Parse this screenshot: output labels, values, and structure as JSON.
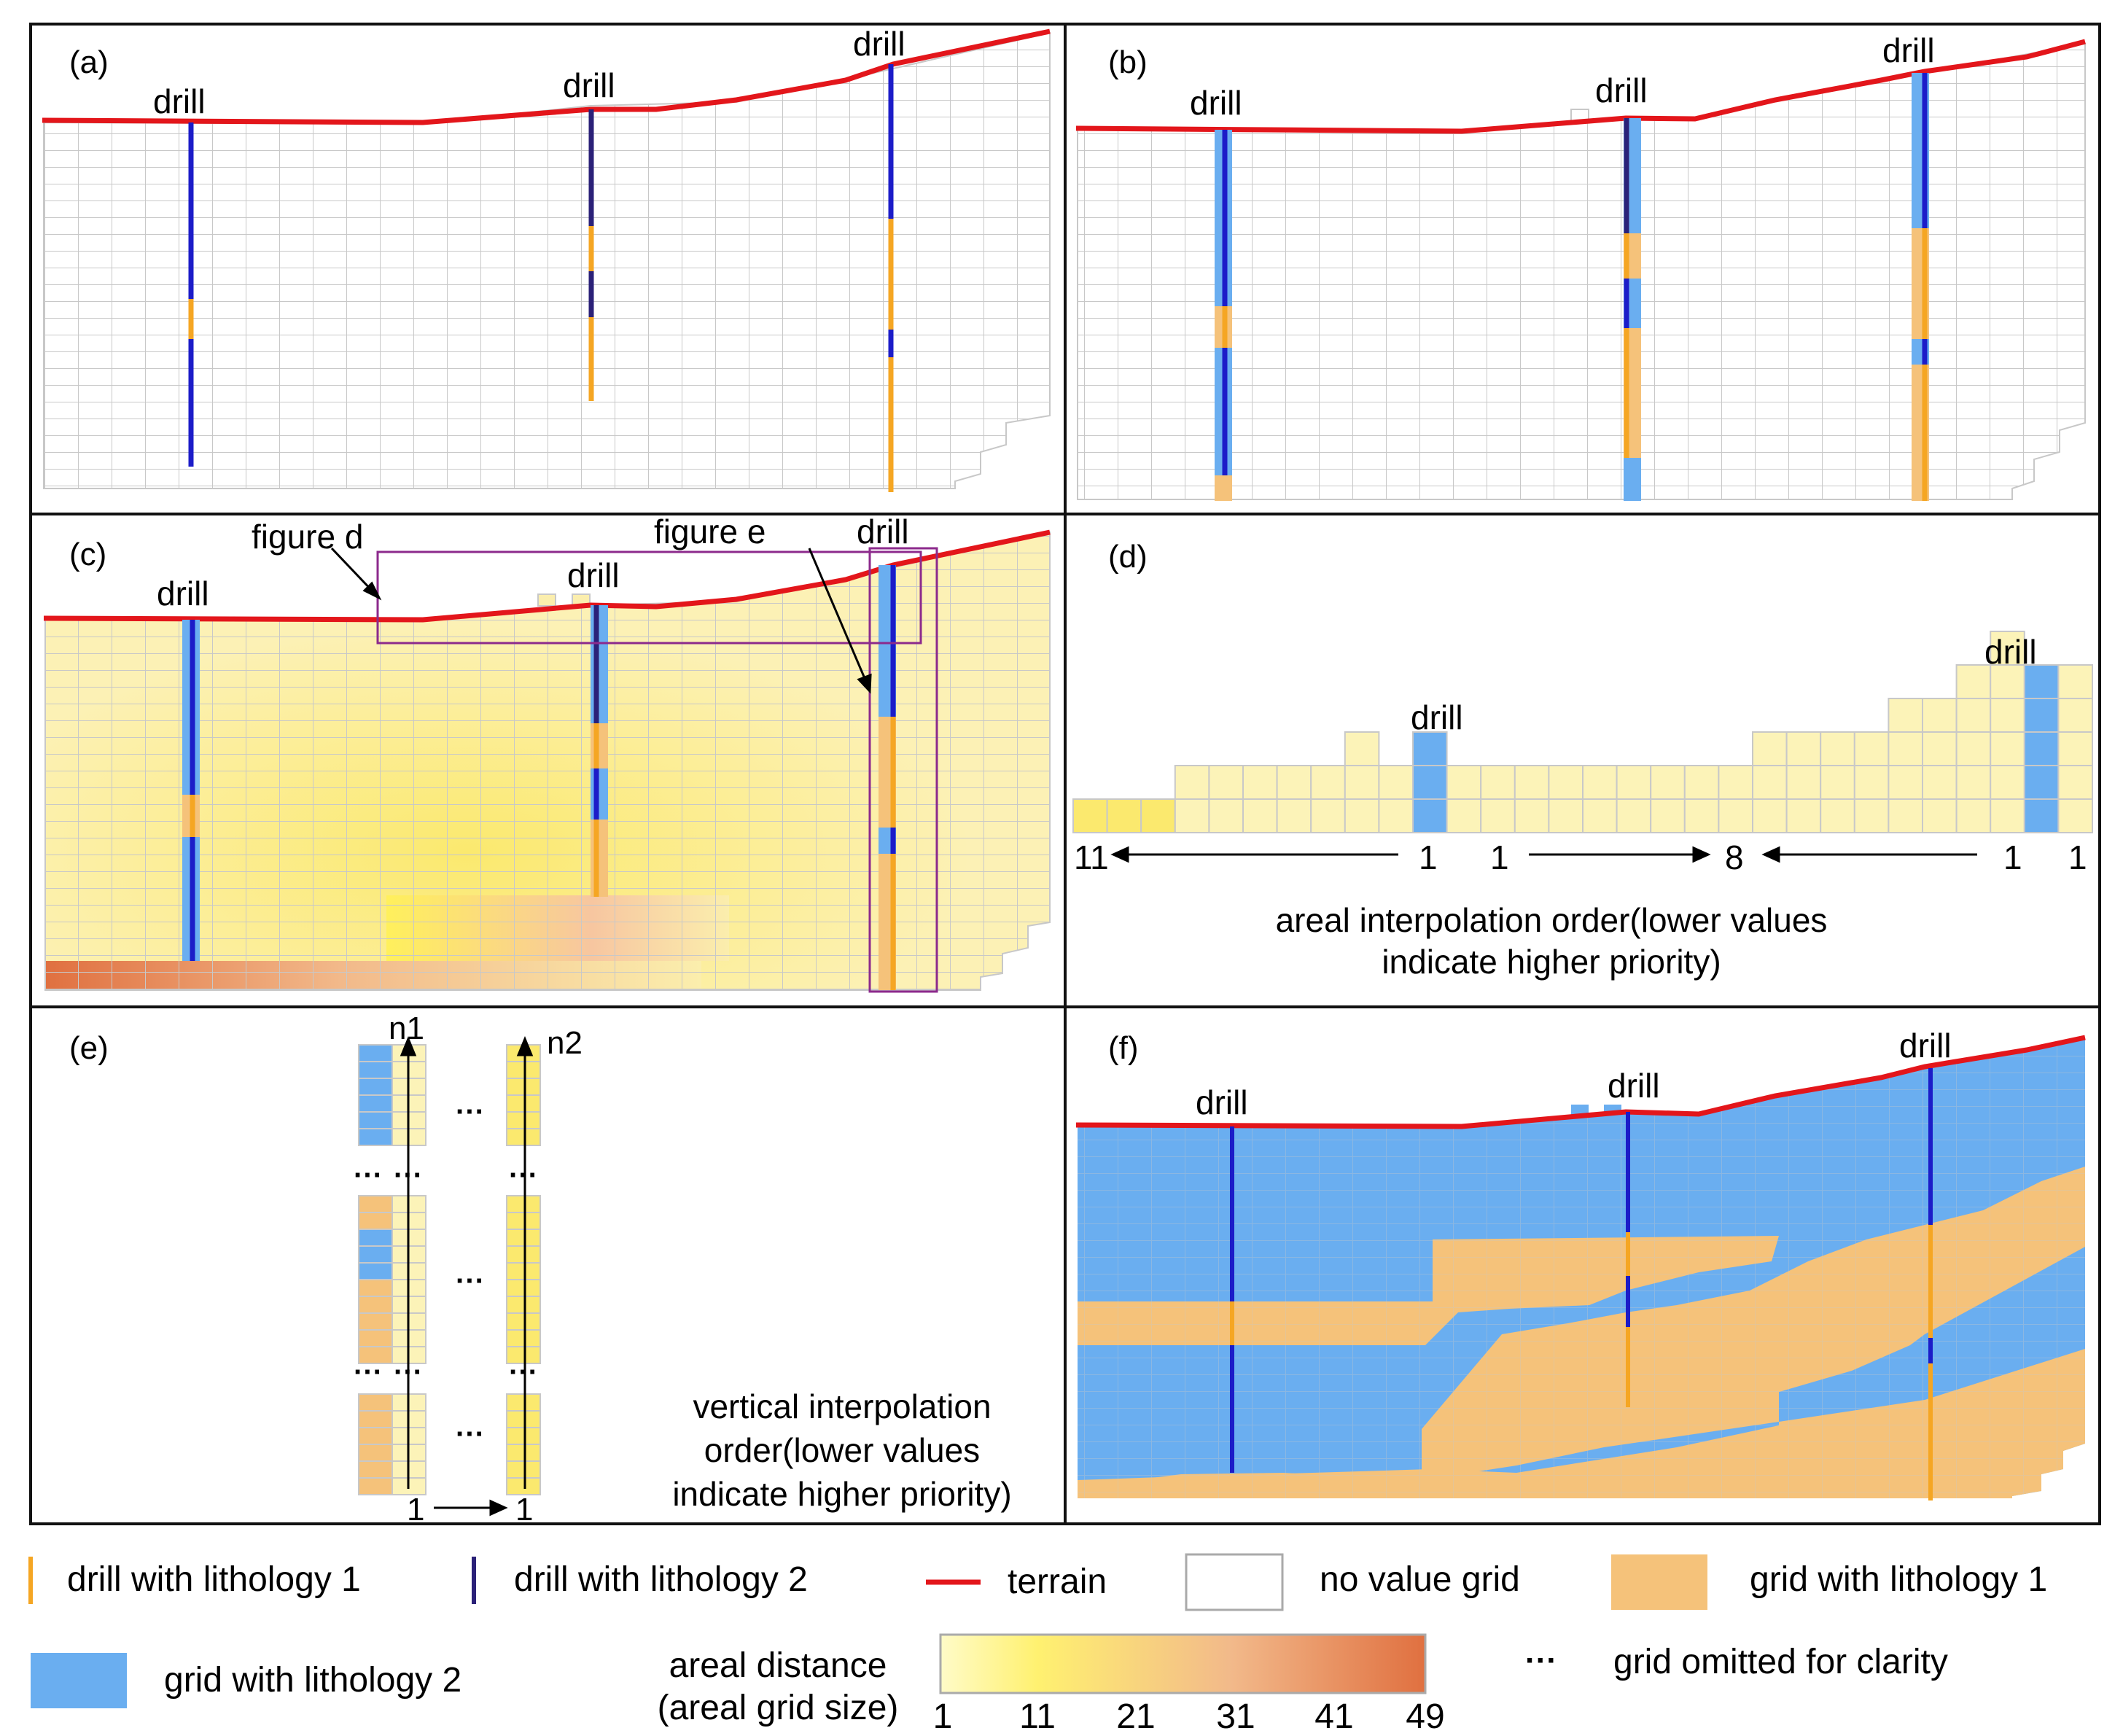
{
  "panels": {
    "a": {
      "label": "(a)",
      "drills": [
        "drill",
        "drill",
        "drill"
      ]
    },
    "b": {
      "label": "(b)",
      "drills": [
        "drill",
        "drill",
        "drill"
      ]
    },
    "c": {
      "label": "(c)",
      "drills": [
        "drill",
        "drill",
        "drill"
      ],
      "callout_d": "figure d",
      "callout_e": "figure e"
    },
    "d": {
      "label": "(d)",
      "drills": [
        "drill",
        "drill"
      ],
      "order_numbers": [
        "11",
        "1",
        "1",
        "8",
        "1",
        "1"
      ],
      "caption_line1": "areal interpolation order(lower values",
      "caption_line2": "indicate higher priority)"
    },
    "e": {
      "label": "(e)",
      "col1": "n1",
      "col2": "n2",
      "bottom_left": "1",
      "bottom_right": "1",
      "ellipsis": "···",
      "caption_line1": "vertical interpolation",
      "caption_line2": "order(lower values",
      "caption_line3": "indicate higher priority)"
    },
    "f": {
      "label": "(f)",
      "drills": [
        "drill",
        "drill",
        "drill"
      ]
    }
  },
  "legend": {
    "drill_lith1": "drill with lithology 1",
    "drill_lith2": "drill with lithology 2",
    "terrain": "terrain",
    "no_value": "no value grid",
    "grid_lith1": "grid with lithology 1",
    "grid_lith2": "grid with lithology 2",
    "areal_distance_line1": "areal distance",
    "areal_distance_line2": "(areal grid size)",
    "scale_ticks": [
      "1",
      "11",
      "21",
      "31",
      "41",
      "49"
    ],
    "omitted_symbol": "···",
    "omitted": "grid omitted for clarity"
  },
  "colors": {
    "terrain": "#e3161b",
    "lith1": "#f5c27a",
    "lith2": "#6aaef0",
    "drill_lith1": "#f5a623",
    "drill_lith2": "#1c1cc8",
    "drill_dark": "#2b2178",
    "grid_line": "#c8c8c8",
    "frame": "#8c2a8c"
  }
}
